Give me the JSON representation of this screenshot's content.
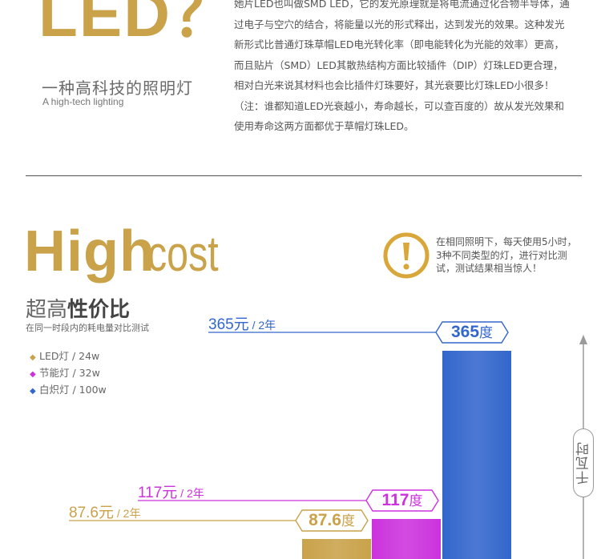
{
  "top": {
    "title": "LED？",
    "subtitle_cn": "一种高科技的照明灯",
    "subtitle_en": "A high-tech lighting",
    "body": "她片LED也叫做SMD LED，它的发光原理就是将电流通过化合物半导体，通过电子与空穴的结合，将能量以光的形式释出，达到发光的效果。这种发光新形式比普通灯珠草帽LED电光转化率（即电能转化为光能的效率）更高，而且贴片（SMD）LED其散热结构方面比较插件（DIP）灯珠LED更合理，相对白光来说其材料也会比插件灯珠要好，其光衰要比灯珠LED小很多！（注：谁都知道LED光衰越小，寿命越长，可以查百度的）故从发光效果和使用寿命这两方面都优于草帽灯珠LED。"
  },
  "section": {
    "title_bold": "High",
    "title_light": "cost",
    "subtitle_normal": "超高",
    "subtitle_bold": "性价比",
    "caption": "在同一时段内的耗电量对比测试",
    "notice": "在相同照明下，每天使用5小时，3种不同类型的灯，进行对比测试，测试结果相当惊人！"
  },
  "chart_data": {
    "type": "bar",
    "title": "",
    "categories": [
      "LED灯 / 24w",
      "节能灯 / 32w",
      "白炽灯 / 100w"
    ],
    "legend": [
      {
        "marker": "◆",
        "label": "LED灯 / 24w",
        "color": "#c9a24a"
      },
      {
        "marker": "◆",
        "label": "节能灯 / 32w",
        "color": "#cc33dd"
      },
      {
        "marker": "◆",
        "label": "白炽灯 / 100w",
        "color": "#3366cc"
      }
    ],
    "series": [
      {
        "name": "LED灯 / 24w",
        "value": 87.6,
        "value_text": "87.6",
        "unit": "度",
        "cost_text": "87.6元",
        "period": " / 2年",
        "color": "#c9a24a"
      },
      {
        "name": "节能灯 / 32w",
        "value": 117,
        "value_text": "117",
        "unit": "度",
        "cost_text": "117元",
        "period": " / 2年",
        "color": "#cc33dd"
      },
      {
        "name": "白炽灯 / 100w",
        "value": 365,
        "value_text": "365",
        "unit": "度",
        "cost_text": "365元",
        "period": " / 2年",
        "color": "#3366cc"
      }
    ],
    "ylabel": "千瓦时",
    "legend_position": "left",
    "grid": false
  }
}
